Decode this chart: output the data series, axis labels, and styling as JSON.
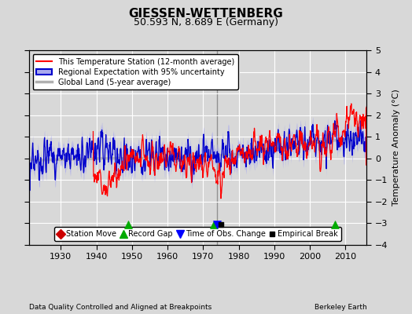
{
  "title": "GIESSEN-WETTENBERG",
  "subtitle": "50.593 N, 8.689 E (Germany)",
  "ylabel": "Temperature Anomaly (°C)",
  "xlabel_left": "Data Quality Controlled and Aligned at Breakpoints",
  "xlabel_right": "Berkeley Earth",
  "ylim": [
    -4,
    5
  ],
  "xlim": [
    1921,
    2016
  ],
  "xticks": [
    1930,
    1940,
    1950,
    1960,
    1970,
    1980,
    1990,
    2000,
    2010
  ],
  "yticks": [
    -4,
    -3,
    -2,
    -1,
    0,
    1,
    2,
    3,
    4,
    5
  ],
  "bg_color": "#d8d8d8",
  "plot_bg_color": "#d8d8d8",
  "grid_color": "#ffffff",
  "station_color": "#ff0000",
  "regional_color": "#0000cc",
  "uncertainty_color": "#aaaaee",
  "global_color": "#b0b0b0",
  "legend_entries": [
    "This Temperature Station (12-month average)",
    "Regional Expectation with 95% uncertainty",
    "Global Land (5-year average)"
  ],
  "markers": {
    "station_move": {
      "years": [],
      "color": "#cc0000",
      "marker": "D",
      "label": "Station Move"
    },
    "record_gap": {
      "years": [
        1949,
        1973,
        2007
      ],
      "color": "#00aa00",
      "marker": "^",
      "label": "Record Gap"
    },
    "time_obs_change": {
      "years": [
        1974
      ],
      "color": "#0000ff",
      "marker": "v",
      "label": "Time of Obs. Change"
    },
    "empirical_break": {
      "years": [
        1975
      ],
      "color": "#000000",
      "marker": "s",
      "label": "Empirical Break"
    }
  },
  "vertical_line_year": 1974
}
